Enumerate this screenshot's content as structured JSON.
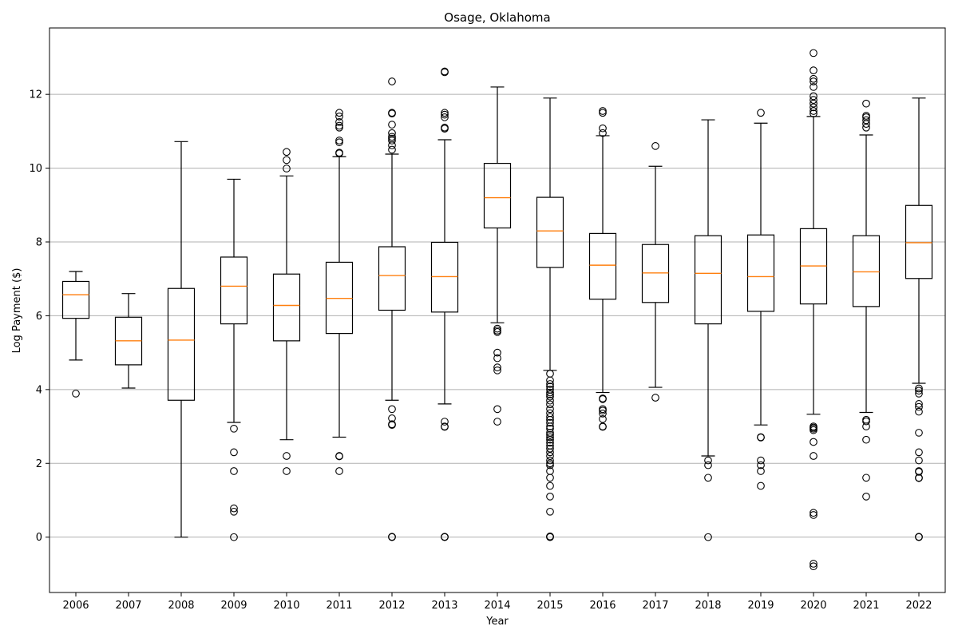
{
  "chart_data": {
    "type": "box",
    "title": "Osage, Oklahoma",
    "xlabel": "Year",
    "ylabel": "Log Payment ($)",
    "ylim": [
      -1.5,
      13.8
    ],
    "yticks": [
      0,
      2,
      4,
      6,
      8,
      10,
      12
    ],
    "grid": "horizontal",
    "colors": {
      "box": "#000000",
      "median": "#ff7f0e",
      "grid": "#b0b0b0"
    },
    "categories": [
      "2006",
      "2007",
      "2008",
      "2009",
      "2010",
      "2011",
      "2012",
      "2013",
      "2014",
      "2015",
      "2016",
      "2017",
      "2018",
      "2019",
      "2020",
      "2021",
      "2022"
    ],
    "boxes": [
      {
        "year": "2006",
        "whislo": 4.8,
        "q1": 5.93,
        "median": 6.57,
        "q3": 6.93,
        "whishi": 7.2,
        "fliers": [
          3.89
        ]
      },
      {
        "year": "2007",
        "whislo": 4.04,
        "q1": 4.67,
        "median": 5.32,
        "q3": 5.96,
        "whishi": 6.6,
        "fliers": []
      },
      {
        "year": "2008",
        "whislo": 0.0,
        "q1": 3.71,
        "median": 5.34,
        "q3": 6.74,
        "whishi": 10.72,
        "fliers": []
      },
      {
        "year": "2009",
        "whislo": 3.11,
        "q1": 5.78,
        "median": 6.8,
        "q3": 7.59,
        "whishi": 9.7,
        "fliers": [
          2.94,
          2.3,
          1.79,
          0.78,
          0.69,
          0.0
        ]
      },
      {
        "year": "2010",
        "whislo": 2.64,
        "q1": 5.32,
        "median": 6.28,
        "q3": 7.13,
        "whishi": 9.79,
        "fliers": [
          10.44,
          10.22,
          9.99,
          2.2,
          1.79
        ]
      },
      {
        "year": "2011",
        "whislo": 2.71,
        "q1": 5.52,
        "median": 6.47,
        "q3": 7.45,
        "whishi": 10.31,
        "fliers": [
          11.5,
          11.4,
          11.25,
          11.15,
          11.1,
          10.75,
          10.7,
          10.42,
          10.4,
          2.2,
          2.19,
          1.79
        ]
      },
      {
        "year": "2012",
        "whislo": 3.71,
        "q1": 6.15,
        "median": 7.09,
        "q3": 7.87,
        "whishi": 10.38,
        "fliers": [
          12.35,
          11.5,
          11.48,
          11.18,
          10.95,
          10.85,
          10.8,
          10.75,
          10.62,
          10.5,
          3.47,
          3.22,
          3.06,
          3.04,
          0.0,
          0.01
        ]
      },
      {
        "year": "2013",
        "whislo": 3.61,
        "q1": 6.1,
        "median": 7.06,
        "q3": 7.99,
        "whishi": 10.77,
        "fliers": [
          12.62,
          12.6,
          11.5,
          11.45,
          11.38,
          11.1,
          11.07,
          3.13,
          3.0,
          2.99,
          0.0,
          0.01
        ]
      },
      {
        "year": "2014",
        "whislo": 5.81,
        "q1": 8.38,
        "median": 9.2,
        "q3": 10.13,
        "whishi": 12.2,
        "fliers": [
          5.65,
          5.6,
          5.56,
          5.0,
          4.85,
          4.6,
          4.52,
          3.47,
          3.13
        ]
      },
      {
        "year": "2015",
        "whislo": 4.52,
        "q1": 7.31,
        "median": 8.3,
        "q3": 9.21,
        "whishi": 11.9,
        "fliers": [
          4.43,
          4.25,
          4.15,
          4.08,
          4.0,
          3.92,
          3.87,
          3.81,
          3.7,
          3.6,
          3.47,
          3.36,
          3.26,
          3.18,
          3.1,
          3.0,
          2.94,
          2.83,
          2.77,
          2.71,
          2.64,
          2.56,
          2.48,
          2.4,
          2.3,
          2.2,
          2.08,
          2.0,
          1.95,
          1.79,
          1.61,
          1.39,
          1.1,
          0.69,
          0.0,
          0.01,
          0.02
        ]
      },
      {
        "year": "2016",
        "whislo": 3.92,
        "q1": 6.45,
        "median": 7.37,
        "q3": 8.23,
        "whishi": 10.88,
        "fliers": [
          11.55,
          11.5,
          11.08,
          10.95,
          3.76,
          3.74,
          3.47,
          3.43,
          3.35,
          3.2,
          3.0,
          2.99
        ]
      },
      {
        "year": "2017",
        "whislo": 4.06,
        "q1": 6.36,
        "median": 7.16,
        "q3": 7.93,
        "whishi": 10.05,
        "fliers": [
          10.6,
          3.78
        ]
      },
      {
        "year": "2018",
        "whislo": 2.2,
        "q1": 5.78,
        "median": 7.15,
        "q3": 8.17,
        "whishi": 11.31,
        "fliers": [
          2.08,
          1.95,
          1.61,
          0.0
        ]
      },
      {
        "year": "2019",
        "whislo": 3.04,
        "q1": 6.12,
        "median": 7.06,
        "q3": 8.19,
        "whishi": 11.22,
        "fliers": [
          11.5,
          2.71,
          2.7,
          2.08,
          1.95,
          1.79,
          1.39
        ]
      },
      {
        "year": "2020",
        "whislo": 3.33,
        "q1": 6.32,
        "median": 7.35,
        "q3": 8.36,
        "whishi": 11.4,
        "fliers": [
          13.12,
          12.65,
          12.42,
          12.35,
          12.2,
          11.95,
          11.85,
          11.75,
          11.65,
          11.55,
          11.48,
          3.0,
          2.97,
          2.94,
          2.9,
          2.58,
          2.2,
          0.66,
          0.6,
          -0.72,
          -0.79
        ]
      },
      {
        "year": "2021",
        "whislo": 3.38,
        "q1": 6.25,
        "median": 7.19,
        "q3": 8.17,
        "whishi": 10.9,
        "fliers": [
          11.75,
          11.42,
          11.38,
          11.3,
          11.2,
          11.1,
          3.18,
          3.14,
          3.0,
          2.64,
          1.61,
          1.1
        ]
      },
      {
        "year": "2022",
        "whislo": 4.17,
        "q1": 7.01,
        "median": 7.98,
        "q3": 8.99,
        "whishi": 11.9,
        "fliers": [
          4.03,
          3.97,
          3.89,
          3.61,
          3.53,
          3.4,
          2.83,
          2.3,
          2.08,
          1.79,
          1.77,
          1.61,
          1.6,
          0.0,
          0.01
        ]
      }
    ]
  }
}
